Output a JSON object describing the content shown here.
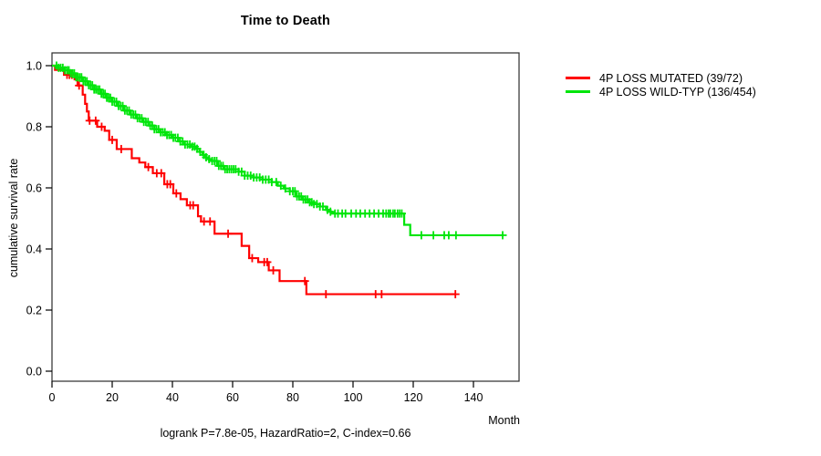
{
  "title": "Time to Death",
  "y_axis": {
    "label": "cumulative survival rate"
  },
  "x_axis": {
    "label": "Month"
  },
  "footer": "logrank P=7.8e-05, HazardRatio=2, C-index=0.66",
  "legend": [
    {
      "label": "4P LOSS MUTATED (39/72)",
      "color": "#ff0000"
    },
    {
      "label": "4P LOSS WILD-TYP (136/454)",
      "color": "#00e50b"
    }
  ],
  "chart_data": {
    "type": "line",
    "variant": "kaplan_meier_step",
    "title": "Time to Death",
    "xlabel": "Month",
    "ylabel": "cumulative survival rate",
    "xlim": [
      0,
      155
    ],
    "ylim": [
      0,
      1.02
    ],
    "x_ticks": [
      0,
      20,
      40,
      60,
      80,
      100,
      120,
      140
    ],
    "y_ticks": [
      "0.0",
      "0.2",
      "0.4",
      "0.6",
      "0.8",
      "1.0"
    ],
    "grid": false,
    "legend_position": "right-outside",
    "annotation": "logrank P=7.8e-05, HazardRatio=2, C-index=0.66",
    "series": [
      {
        "name": "4P LOSS MUTATED (39/72)",
        "color": "#ff0000",
        "n_events": 39,
        "n_total": 72,
        "end_month": 134,
        "steps": [
          [
            0,
            1.0
          ],
          [
            1,
            0.986
          ],
          [
            4,
            0.97
          ],
          [
            7.5,
            0.955
          ],
          [
            8.5,
            0.935
          ],
          [
            10.2,
            0.905
          ],
          [
            11,
            0.875
          ],
          [
            11.6,
            0.85
          ],
          [
            12.2,
            0.82
          ],
          [
            15,
            0.8
          ],
          [
            17.5,
            0.787
          ],
          [
            19,
            0.757
          ],
          [
            21.5,
            0.727
          ],
          [
            26.5,
            0.697
          ],
          [
            29,
            0.683
          ],
          [
            31,
            0.668
          ],
          [
            33.5,
            0.648
          ],
          [
            37.3,
            0.612
          ],
          [
            40.3,
            0.582
          ],
          [
            42.7,
            0.563
          ],
          [
            44.8,
            0.543
          ],
          [
            48.5,
            0.507
          ],
          [
            49.5,
            0.49
          ],
          [
            54,
            0.45
          ],
          [
            63,
            0.41
          ],
          [
            65.5,
            0.37
          ],
          [
            68.5,
            0.357
          ],
          [
            72,
            0.33
          ],
          [
            75.6,
            0.295
          ],
          [
            84.5,
            0.252
          ]
        ],
        "censor_months": [
          5,
          5.8,
          6.6,
          9,
          12.5,
          14.5,
          16.5,
          20,
          23,
          32,
          34.8,
          36.3,
          38.3,
          39.3,
          41.3,
          45.9,
          46.9,
          50.5,
          52.5,
          58.5,
          66.5,
          70.5,
          71.5,
          73.5,
          84,
          91,
          107.5,
          109.5,
          134
        ]
      },
      {
        "name": "4P LOSS WILD-TYP (136/454)",
        "color": "#00e50b",
        "n_events": 136,
        "n_total": 454,
        "end_month": 150,
        "steps": [
          [
            0,
            1.0
          ],
          [
            2,
            0.993
          ],
          [
            4,
            0.985
          ],
          [
            6,
            0.975
          ],
          [
            8,
            0.962
          ],
          [
            10,
            0.949
          ],
          [
            12,
            0.936
          ],
          [
            14,
            0.922
          ],
          [
            16,
            0.908
          ],
          [
            18,
            0.895
          ],
          [
            20,
            0.882
          ],
          [
            22,
            0.868
          ],
          [
            24,
            0.853
          ],
          [
            26,
            0.84
          ],
          [
            28,
            0.828
          ],
          [
            30,
            0.816
          ],
          [
            32,
            0.804
          ],
          [
            34,
            0.792
          ],
          [
            36,
            0.782
          ],
          [
            38,
            0.773
          ],
          [
            40,
            0.764
          ],
          [
            42,
            0.752
          ],
          [
            44,
            0.742
          ],
          [
            46,
            0.735
          ],
          [
            48,
            0.728
          ],
          [
            49,
            0.718
          ],
          [
            50,
            0.708
          ],
          [
            51,
            0.7
          ],
          [
            52,
            0.694
          ],
          [
            53,
            0.688
          ],
          [
            55,
            0.672
          ],
          [
            57,
            0.661
          ],
          [
            62,
            0.653
          ],
          [
            64,
            0.64
          ],
          [
            67,
            0.634
          ],
          [
            70,
            0.627
          ],
          [
            73,
            0.619
          ],
          [
            75,
            0.607
          ],
          [
            77,
            0.598
          ],
          [
            79,
            0.589
          ],
          [
            81,
            0.572
          ],
          [
            83,
            0.562
          ],
          [
            85,
            0.553
          ],
          [
            87,
            0.547
          ],
          [
            89,
            0.539
          ],
          [
            91,
            0.528
          ],
          [
            92,
            0.522
          ],
          [
            93,
            0.516
          ],
          [
            117,
            0.479
          ],
          [
            119,
            0.445
          ]
        ],
        "censor_months": [
          1.5,
          2.2,
          2.9,
          3.6,
          4.3,
          5,
          5.6,
          6.2,
          6.8,
          7.4,
          8,
          8.6,
          9.2,
          9.8,
          10.4,
          11,
          11.6,
          12.2,
          12.8,
          13.4,
          14,
          14.6,
          15.2,
          15.8,
          16.4,
          17,
          17.6,
          18.2,
          18.8,
          19.4,
          20,
          20.7,
          21.4,
          22.1,
          22.8,
          23.5,
          24.2,
          24.9,
          25.6,
          26.3,
          27,
          27.7,
          28.4,
          29.1,
          29.8,
          30.5,
          31.2,
          31.9,
          32.6,
          33.3,
          34,
          34.7,
          35.4,
          36.1,
          36.8,
          37.5,
          38.2,
          38.9,
          39.6,
          40.3,
          41,
          41.8,
          42.6,
          43.4,
          44.2,
          45,
          45.8,
          46.6,
          47.4,
          48.2,
          49.2,
          50.4,
          51.2,
          52.2,
          53.2,
          54,
          54.7,
          55.4,
          56.1,
          56.8,
          57.5,
          58.2,
          58.9,
          59.6,
          60.3,
          61,
          62,
          63,
          64,
          65,
          66,
          67,
          68,
          69,
          70,
          71,
          72,
          73,
          74.5,
          76,
          77.5,
          79,
          80,
          80.7,
          81.4,
          82.1,
          82.8,
          83.5,
          84.2,
          84.9,
          85.6,
          86.3,
          87,
          88,
          89,
          90,
          91.5,
          92.5,
          94,
          95,
          96.4,
          97.5,
          99.4,
          101,
          102.4,
          104,
          105.5,
          107,
          108.5,
          110,
          111,
          111.8,
          112.4,
          113.3,
          113.9,
          114.8,
          115.5,
          116.2,
          122.7,
          126.7,
          130.3,
          131.8,
          134.2,
          149.7
        ]
      }
    ]
  }
}
